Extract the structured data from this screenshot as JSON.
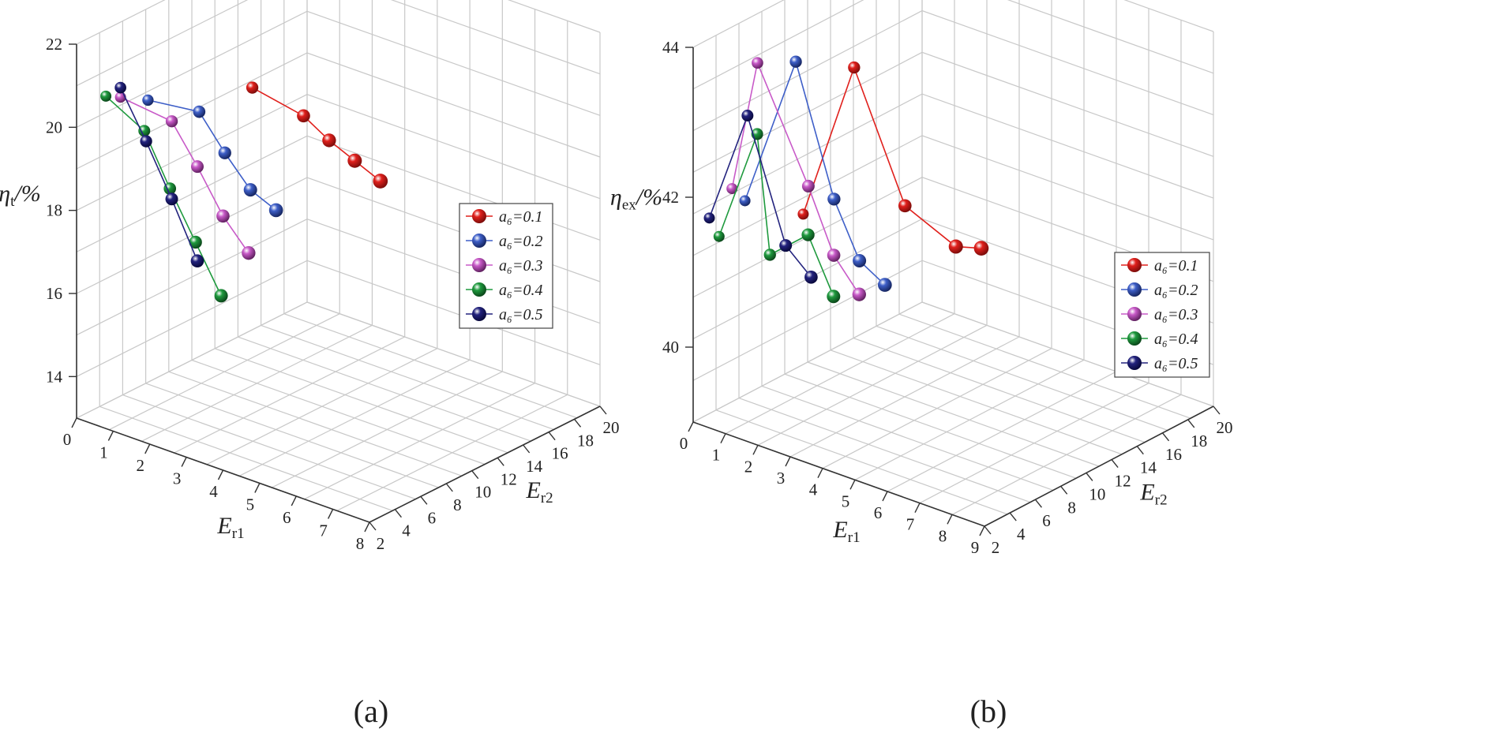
{
  "chart_data": [
    {
      "type": "scatter",
      "caption": "(a)",
      "zlabel": {
        "main": "η",
        "sub": "t",
        "suffix": "/%"
      },
      "xlabel": {
        "main": "E",
        "sub": "r1"
      },
      "ylabel": {
        "main": "E",
        "sub": "r2"
      },
      "xlim": [
        0,
        8
      ],
      "ylim": [
        2,
        20
      ],
      "zlim": [
        13,
        22
      ],
      "x_ticks": [
        "0",
        "1",
        "2",
        "3",
        "4",
        "5",
        "6",
        "7",
        "8"
      ],
      "y_ticks": [
        "2",
        "4",
        "6",
        "8",
        "10",
        "12",
        "14",
        "16",
        "18",
        "20"
      ],
      "z_ticks": [
        "14",
        "16",
        "18",
        "20",
        "22"
      ],
      "legend": [
        "a₆=0.1",
        "a₆=0.2",
        "a₆=0.3",
        "a₆=0.4",
        "a₆=0.5"
      ],
      "series": [
        {
          "name": "a₆=0.1",
          "color": "#e0201c",
          "dark": "#7a0c0a",
          "points": [
            [
              3.4,
              16,
              17.6
            ],
            [
              3.4,
              14,
              18.4
            ],
            [
              3.4,
              12,
              19.2
            ],
            [
              3.4,
              10,
              20.1
            ],
            [
              3.4,
              6,
              21.4
            ]
          ]
        },
        {
          "name": "a₆=0.2",
          "color": "#3e5fc8",
          "dark": "#15245e",
          "points": [
            [
              1.6,
              13,
              16.8
            ],
            [
              1.6,
              11,
              17.6
            ],
            [
              1.6,
              9,
              18.8
            ],
            [
              1.6,
              7,
              20.1
            ],
            [
              1.6,
              3,
              21.0
            ]
          ]
        },
        {
          "name": "a₆=0.3",
          "color": "#c85ac8",
          "dark": "#5e1f5e",
          "points": [
            [
              1.2,
              12,
              15.8
            ],
            [
              1.2,
              10,
              17.0
            ],
            [
              1.2,
              8,
              18.5
            ],
            [
              1.2,
              6,
              19.9
            ],
            [
              1.2,
              2,
              21.1
            ]
          ]
        },
        {
          "name": "a₆=0.4",
          "color": "#1f9a3e",
          "dark": "#0a4519",
          "points": [
            [
              0.8,
              11,
              14.8
            ],
            [
              0.8,
              9,
              16.4
            ],
            [
              0.8,
              7,
              18.0
            ],
            [
              0.8,
              5,
              19.7
            ],
            [
              0.8,
              2,
              21.0
            ]
          ]
        },
        {
          "name": "a₆=0.5",
          "color": "#23237e",
          "dark": "#08083a",
          "points": [
            [
              0.5,
              10,
              15.7
            ],
            [
              0.5,
              8,
              17.5
            ],
            [
              0.5,
              6,
              19.2
            ],
            [
              0.5,
              4,
              20.8
            ]
          ]
        }
      ]
    },
    {
      "type": "scatter",
      "caption": "(b)",
      "zlabel": {
        "main": "η",
        "sub": "ex",
        "suffix": "/%"
      },
      "xlabel": {
        "main": "E",
        "sub": "r1"
      },
      "ylabel": {
        "main": "E",
        "sub": "r2"
      },
      "xlim": [
        0,
        9
      ],
      "ylim": [
        2,
        20
      ],
      "zlim": [
        39,
        44
      ],
      "x_ticks": [
        "0",
        "1",
        "2",
        "3",
        "4",
        "5",
        "6",
        "7",
        "8",
        "9"
      ],
      "y_ticks": [
        "2",
        "4",
        "6",
        "8",
        "10",
        "12",
        "14",
        "16",
        "18",
        "20"
      ],
      "z_ticks": [
        "40",
        "42",
        "44"
      ],
      "legend": [
        "a₆=0.1",
        "a₆=0.2",
        "a₆=0.3",
        "a₆=0.4",
        "a₆=0.5"
      ],
      "series": [
        {
          "name": "a₆=0.1",
          "color": "#e0201c",
          "dark": "#7a0c0a",
          "points": [
            [
              3.4,
              16,
              40.6
            ],
            [
              3.4,
              14,
              40.8
            ],
            [
              3.4,
              10,
              41.7
            ],
            [
              3.4,
              6,
              43.9
            ],
            [
              3.4,
              2,
              42.3
            ]
          ]
        },
        {
          "name": "a₆=0.2",
          "color": "#3e5fc8",
          "dark": "#15245e",
          "points": [
            [
              1.6,
              13,
              40.1
            ],
            [
              1.6,
              11,
              40.6
            ],
            [
              1.6,
              9,
              41.6
            ],
            [
              1.6,
              6,
              43.7
            ],
            [
              1.6,
              2,
              42.2
            ]
          ]
        },
        {
          "name": "a₆=0.3",
          "color": "#c85ac8",
          "dark": "#5e1f5e",
          "points": [
            [
              1.2,
              12,
              40.0
            ],
            [
              1.2,
              10,
              40.7
            ],
            [
              1.2,
              8,
              41.8
            ],
            [
              1.2,
              4,
              43.8
            ],
            [
              1.2,
              2,
              42.3
            ]
          ]
        },
        {
          "name": "a₆=0.4",
          "color": "#1f9a3e",
          "dark": "#0a4519",
          "points": [
            [
              0.8,
              11,
              40.0
            ],
            [
              0.8,
              9,
              41.0
            ],
            [
              0.8,
              6,
              41.0
            ],
            [
              0.8,
              5,
              42.7
            ],
            [
              0.8,
              2,
              41.6
            ]
          ]
        },
        {
          "name": "a₆=0.5",
          "color": "#23237e",
          "dark": "#08083a",
          "points": [
            [
              0.5,
              10,
              40.3
            ],
            [
              0.5,
              8,
              40.9
            ],
            [
              0.5,
              5,
              42.9
            ],
            [
              0.5,
              2,
              41.8
            ]
          ]
        }
      ]
    }
  ]
}
